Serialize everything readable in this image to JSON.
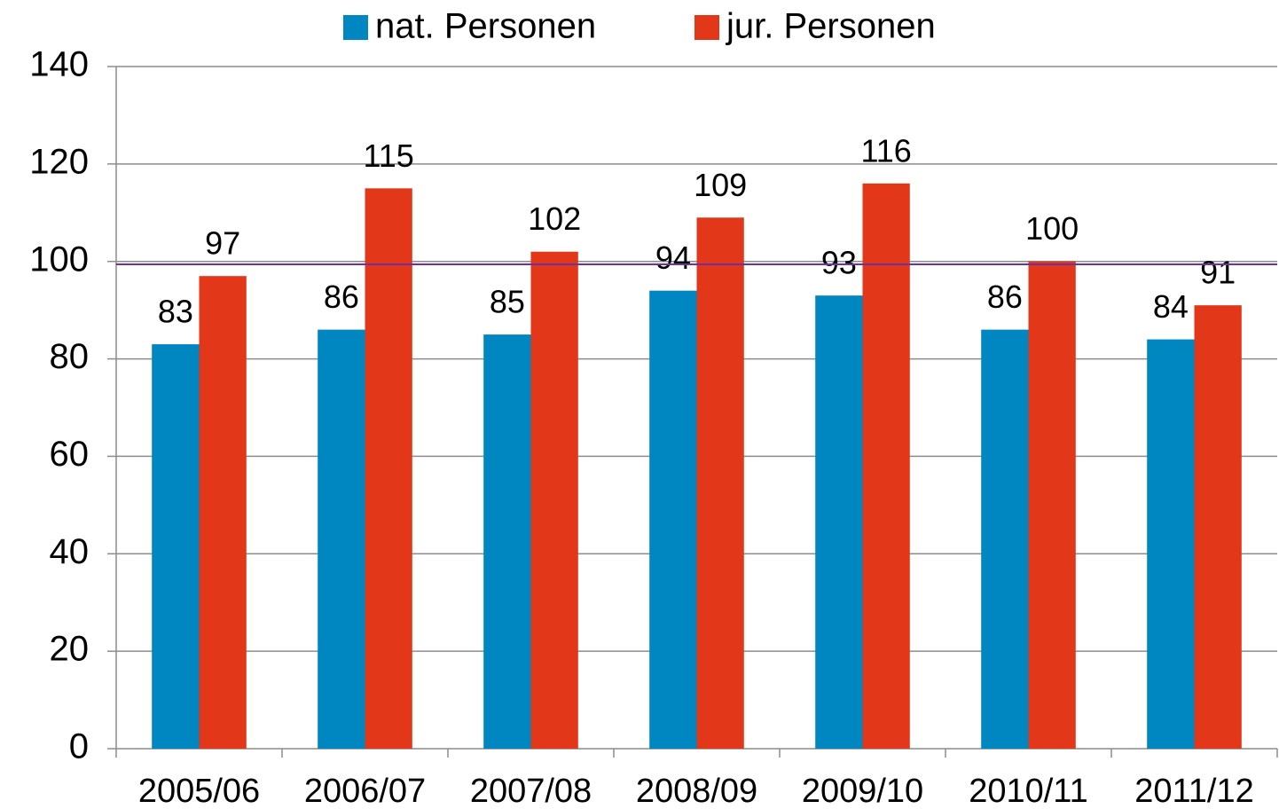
{
  "chart_data": {
    "type": "bar",
    "categories": [
      "2005/06",
      "2006/07",
      "2007/08",
      "2008/09",
      "2009/10",
      "2010/11",
      "2011/12"
    ],
    "series": [
      {
        "name": "nat. Personen",
        "color": "#0086c0",
        "values": [
          83,
          86,
          85,
          94,
          93,
          86,
          84
        ]
      },
      {
        "name": "jur. Personen",
        "color": "#e23718",
        "values": [
          97,
          115,
          102,
          109,
          116,
          100,
          91
        ]
      }
    ],
    "ylim": [
      0,
      140
    ],
    "yticks": [
      0,
      20,
      40,
      60,
      80,
      100,
      120,
      140
    ],
    "grid": true,
    "legend": "top",
    "reference_line": {
      "value": 99.4,
      "color": "#7030a0"
    }
  }
}
